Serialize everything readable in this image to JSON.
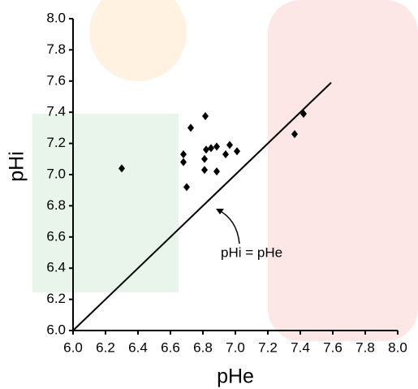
{
  "chart_data": {
    "type": "scatter",
    "xlabel": "pHe",
    "ylabel": "pHi",
    "xlim": [
      6.0,
      8.0
    ],
    "ylim": [
      6.0,
      8.0
    ],
    "xticks": [
      {
        "value": 6,
        "label": "6.0"
      },
      6.2,
      6.4,
      6.6,
      6.8,
      {
        "value": 7,
        "label": "7.0"
      },
      7.2,
      7.4,
      7.6,
      7.8,
      {
        "value": 8,
        "label": "8.0"
      }
    ],
    "yticks": [
      {
        "value": 6,
        "label": "6.0"
      },
      6.2,
      6.4,
      6.6,
      6.8,
      {
        "value": 7,
        "label": "7.0"
      },
      7.2,
      7.4,
      7.6,
      7.8,
      {
        "value": 8,
        "label": "8.0"
      }
    ],
    "series": [
      {
        "color": "#000000",
        "x": [
          6.3,
          6.68,
          6.68,
          6.7,
          6.725,
          6.815,
          6.81,
          6.81,
          6.82,
          6.85,
          6.885,
          6.885,
          6.94,
          6.965,
          7.01,
          7.365,
          7.42
        ],
        "y": [
          7.04,
          7.13,
          7.08,
          6.92,
          7.3,
          7.375,
          7.03,
          7.1,
          7.16,
          7.17,
          7.18,
          7.02,
          7.13,
          7.19,
          7.15,
          7.26,
          7.39
        ]
      }
    ],
    "reference_line": {
      "color": "#000000",
      "x": [
        6.0,
        7.59
      ],
      "y": [
        6.0,
        7.59
      ]
    },
    "annotation": {
      "text": "pHi = pHe"
    }
  }
}
